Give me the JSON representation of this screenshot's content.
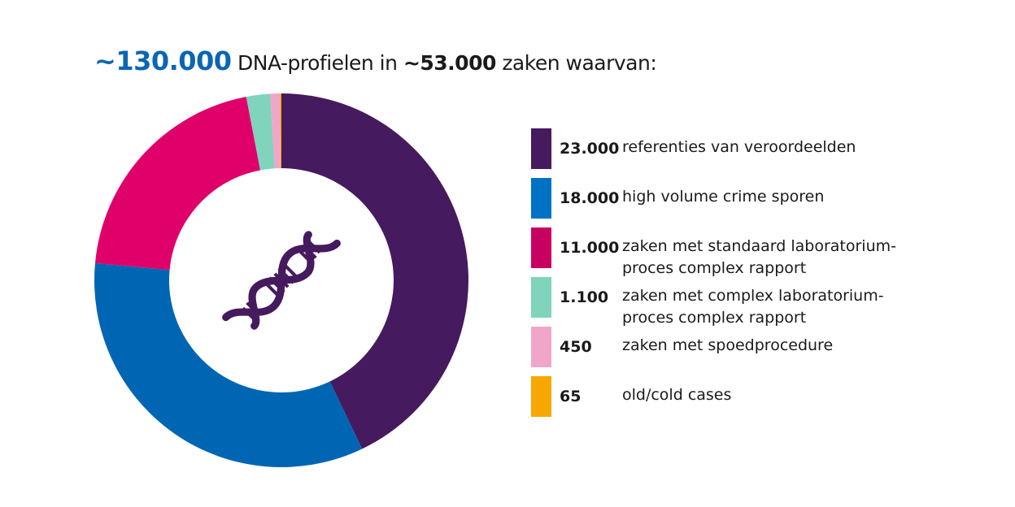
{
  "title": {
    "total": "~130.000",
    "middle": "DNA-profielen in",
    "cases": "~53.000",
    "end": "zaken waarvan:"
  },
  "chart_data": {
    "type": "pie",
    "donut": true,
    "center_icon": "dna-icon",
    "start": "top, clockwise",
    "categories": [
      "referenties van veroordeelden",
      "high volume crime sporen",
      "zaken met standaard laboratorium-proces complex rapport",
      "zaken met complex laboratorium-proces complex rapport",
      "zaken met spoedprocedure",
      "old/cold cases"
    ],
    "values": [
      23000,
      18000,
      11000,
      1100,
      450,
      65
    ],
    "value_labels": [
      "23.000",
      "18.000",
      "11.000",
      "1.100",
      "450",
      "65"
    ],
    "colors": [
      "#461a5e",
      "#0066b3",
      "#e0006a",
      "#7fd4bb",
      "#f0a6c9",
      "#f7a800"
    ],
    "legend_colors": [
      "#461a5e",
      "#0072c6",
      "#c8005f",
      "#7fd4bb",
      "#f0a6c9",
      "#f7a800"
    ],
    "legend_lines": [
      [
        "referenties van veroordeelden"
      ],
      [
        "high volume crime sporen"
      ],
      [
        "zaken met standaard laboratorium-",
        "proces complex rapport"
      ],
      [
        "zaken met complex laboratorium-",
        "proces complex rapport"
      ],
      [
        "zaken met spoedprocedure"
      ],
      [
        "old/cold cases"
      ]
    ],
    "legend": "right"
  }
}
